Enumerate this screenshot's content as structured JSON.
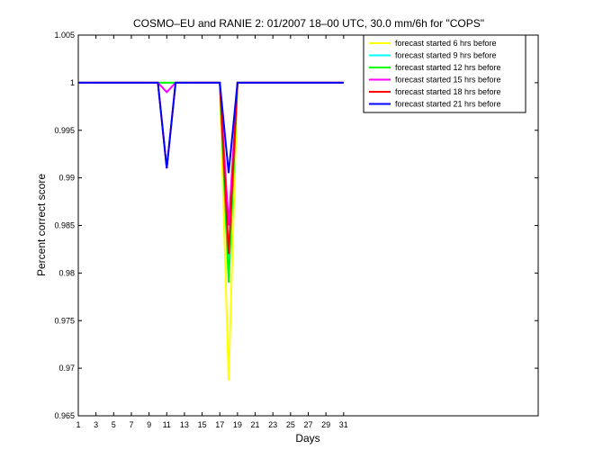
{
  "chart_data": {
    "type": "line",
    "title": "COSMO–EU and RANIE 2: 01/2007 18–00 UTC, 30.0 mm/6h for \"COPS\"",
    "xlabel": "Days",
    "ylabel": "Percent correct score",
    "xlim": [
      1,
      53
    ],
    "ylim": [
      0.965,
      1.005
    ],
    "xticks": [
      1,
      3,
      5,
      7,
      9,
      11,
      13,
      15,
      17,
      19,
      21,
      23,
      25,
      27,
      29,
      31
    ],
    "yticks": [
      0.965,
      0.97,
      0.975,
      0.98,
      0.985,
      0.99,
      0.995,
      1,
      1.005
    ],
    "ytick_labels": [
      "0.965",
      "0.97",
      "0.975",
      "0.98",
      "0.985",
      "0.99",
      "0.995",
      "1",
      "1.005"
    ],
    "grid": false,
    "legend_position": "top-right",
    "x": [
      1,
      2,
      3,
      4,
      5,
      6,
      7,
      8,
      9,
      10,
      11,
      12,
      13,
      14,
      15,
      16,
      17,
      18,
      19,
      20,
      21,
      22,
      23,
      24,
      25,
      26,
      27,
      28,
      29,
      30,
      31
    ],
    "series": [
      {
        "name": "forecast started 6 hrs before",
        "color": "#ffff00",
        "values": [
          1,
          1,
          1,
          1,
          1,
          1,
          1,
          1,
          1,
          1,
          1,
          1,
          1,
          1,
          1,
          1,
          1,
          0.9687,
          1,
          1,
          1,
          1,
          1,
          1,
          1,
          1,
          1,
          1,
          1,
          1,
          1
        ]
      },
      {
        "name": "forecast started 9 hrs before",
        "color": "#00ffff",
        "values": [
          1,
          1,
          1,
          1,
          1,
          1,
          1,
          1,
          1,
          1,
          1,
          1,
          1,
          1,
          1,
          1,
          1,
          0.981,
          1,
          1,
          1,
          1,
          1,
          1,
          1,
          1,
          1,
          1,
          1,
          1,
          1
        ]
      },
      {
        "name": "forecast started 12 hrs before",
        "color": "#00ff00",
        "values": [
          1,
          1,
          1,
          1,
          1,
          1,
          1,
          1,
          1,
          1,
          1,
          1,
          1,
          1,
          1,
          1,
          1,
          0.979,
          1,
          1,
          1,
          1,
          1,
          1,
          1,
          1,
          1,
          1,
          1,
          1,
          1
        ]
      },
      {
        "name": "forecast started 15 hrs before",
        "color": "#ff00ff",
        "values": [
          1,
          1,
          1,
          1,
          1,
          1,
          1,
          1,
          1,
          1,
          0.999,
          1,
          1,
          1,
          1,
          1,
          1,
          0.985,
          1,
          1,
          1,
          1,
          1,
          1,
          1,
          1,
          1,
          1,
          1,
          1,
          1
        ]
      },
      {
        "name": "forecast started 18 hrs before",
        "color": "#ff0000",
        "values": [
          1,
          1,
          1,
          1,
          1,
          1,
          1,
          1,
          1,
          1,
          0.991,
          1,
          1,
          1,
          1,
          1,
          1,
          0.982,
          1,
          1,
          1,
          1,
          1,
          1,
          1,
          1,
          1,
          1,
          1,
          1,
          1
        ]
      },
      {
        "name": "forecast started 21 hrs before",
        "color": "#0000ff",
        "values": [
          1,
          1,
          1,
          1,
          1,
          1,
          1,
          1,
          1,
          1,
          0.991,
          1,
          1,
          1,
          1,
          1,
          1,
          0.9905,
          1,
          1,
          1,
          1,
          1,
          1,
          1,
          1,
          1,
          1,
          1,
          1,
          1
        ]
      }
    ]
  }
}
